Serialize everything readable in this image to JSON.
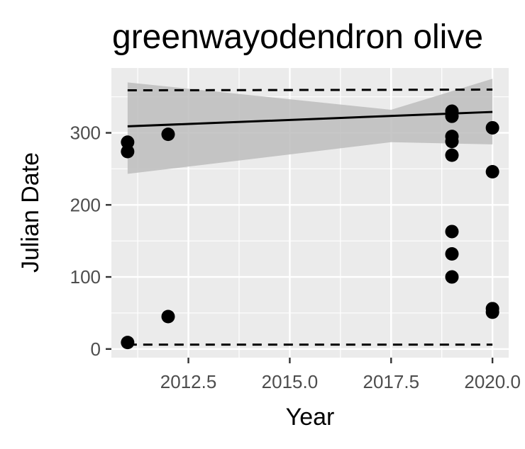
{
  "chart_data": {
    "type": "scatter",
    "title": "greenwayodendron olive",
    "xlabel": "Year",
    "ylabel": "Julian Date",
    "xlim": [
      2010.6,
      2020.4
    ],
    "ylim": [
      -12,
      390
    ],
    "x_ticks": [
      2012.5,
      2015.0,
      2017.5,
      2020.0
    ],
    "x_tick_labels": [
      "2012.5",
      "2015.0",
      "2017.5",
      "2020.0"
    ],
    "y_ticks": [
      0,
      100,
      200,
      300
    ],
    "y_tick_labels": [
      "0",
      "100",
      "200",
      "300"
    ],
    "grid": true,
    "legend": "none",
    "colors": {
      "panel": "#ebebeb",
      "grid": "#ffffff",
      "points": "#000000",
      "ribbon": "#bdbdbd",
      "fit_line": "#000000"
    },
    "points": [
      {
        "x": 2011,
        "y": 287
      },
      {
        "x": 2011,
        "y": 274
      },
      {
        "x": 2011,
        "y": 9
      },
      {
        "x": 2012,
        "y": 298
      },
      {
        "x": 2012,
        "y": 45
      },
      {
        "x": 2019,
        "y": 330
      },
      {
        "x": 2019,
        "y": 323
      },
      {
        "x": 2019,
        "y": 295
      },
      {
        "x": 2019,
        "y": 288
      },
      {
        "x": 2019,
        "y": 269
      },
      {
        "x": 2019,
        "y": 163
      },
      {
        "x": 2019,
        "y": 132
      },
      {
        "x": 2019,
        "y": 100
      },
      {
        "x": 2020,
        "y": 307
      },
      {
        "x": 2020,
        "y": 246
      },
      {
        "x": 2020,
        "y": 56
      },
      {
        "x": 2020,
        "y": 51
      }
    ],
    "fit_line": {
      "x": [
        2011,
        2020
      ],
      "y": [
        309,
        329
      ]
    },
    "confidence_ribbon": {
      "x": [
        2011,
        2017.5,
        2020
      ],
      "lower": [
        243,
        287,
        284
      ],
      "upper": [
        370,
        332,
        375
      ]
    },
    "dashed_lines": [
      {
        "name": "upper",
        "x": [
          2011,
          2020
        ],
        "y": [
          359,
          360
        ]
      },
      {
        "name": "lower",
        "x": [
          2011,
          2020
        ],
        "y": [
          6,
          6
        ]
      }
    ]
  }
}
